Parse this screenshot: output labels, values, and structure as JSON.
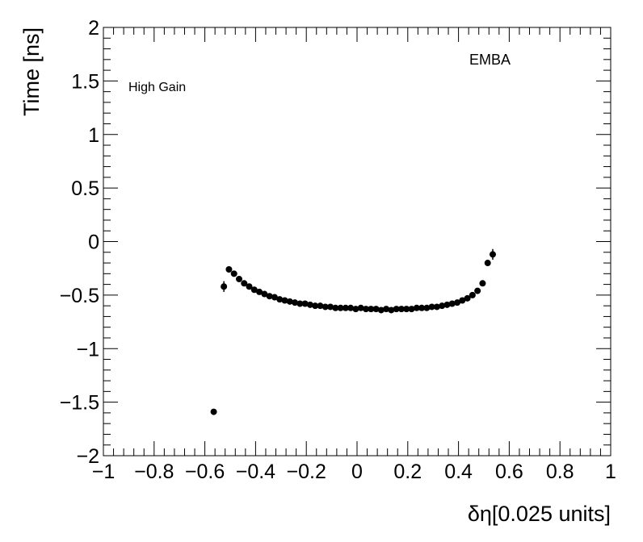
{
  "chart_data": {
    "type": "scatter",
    "xlabel": "δη[0.025 units]",
    "ylabel": "Time [ns]",
    "xlim": [
      -1,
      1
    ],
    "ylim": [
      -2,
      2
    ],
    "x_ticks": [
      "−1",
      "−0.8",
      "−0.6",
      "−0.4",
      "−0.2",
      "0",
      "0.2",
      "0.4",
      "0.6",
      "0.8",
      "1"
    ],
    "y_ticks": [
      "−2",
      "−1.5",
      "−1",
      "−0.5",
      "0",
      "0.5",
      "1",
      "1.5",
      "2"
    ],
    "annotations": [
      "EMBA",
      "High Gain"
    ],
    "grid": false,
    "marker_color": "#000000",
    "points": [
      {
        "x": -0.565,
        "y": -1.59,
        "err": 0.02
      },
      {
        "x": -0.525,
        "y": -0.42,
        "err": 0.05
      },
      {
        "x": -0.505,
        "y": -0.26,
        "err": 0.02
      },
      {
        "x": -0.485,
        "y": -0.3,
        "err": 0.015
      },
      {
        "x": -0.465,
        "y": -0.35,
        "err": 0.015
      },
      {
        "x": -0.445,
        "y": -0.39,
        "err": 0.012
      },
      {
        "x": -0.425,
        "y": -0.42,
        "err": 0.01
      },
      {
        "x": -0.405,
        "y": -0.45,
        "err": 0.01
      },
      {
        "x": -0.385,
        "y": -0.47,
        "err": 0.01
      },
      {
        "x": -0.365,
        "y": -0.49,
        "err": 0.01
      },
      {
        "x": -0.345,
        "y": -0.51,
        "err": 0.01
      },
      {
        "x": -0.325,
        "y": -0.52,
        "err": 0.01
      },
      {
        "x": -0.305,
        "y": -0.54,
        "err": 0.01
      },
      {
        "x": -0.285,
        "y": -0.55,
        "err": 0.01
      },
      {
        "x": -0.265,
        "y": -0.56,
        "err": 0.01
      },
      {
        "x": -0.245,
        "y": -0.57,
        "err": 0.01
      },
      {
        "x": -0.225,
        "y": -0.58,
        "err": 0.01
      },
      {
        "x": -0.205,
        "y": -0.58,
        "err": 0.01
      },
      {
        "x": -0.185,
        "y": -0.59,
        "err": 0.01
      },
      {
        "x": -0.165,
        "y": -0.6,
        "err": 0.01
      },
      {
        "x": -0.145,
        "y": -0.6,
        "err": 0.01
      },
      {
        "x": -0.125,
        "y": -0.61,
        "err": 0.01
      },
      {
        "x": -0.105,
        "y": -0.61,
        "err": 0.01
      },
      {
        "x": -0.085,
        "y": -0.62,
        "err": 0.01
      },
      {
        "x": -0.065,
        "y": -0.62,
        "err": 0.01
      },
      {
        "x": -0.045,
        "y": -0.62,
        "err": 0.01
      },
      {
        "x": -0.025,
        "y": -0.62,
        "err": 0.01
      },
      {
        "x": -0.005,
        "y": -0.63,
        "err": 0.01
      },
      {
        "x": 0.015,
        "y": -0.62,
        "err": 0.01
      },
      {
        "x": 0.035,
        "y": -0.63,
        "err": 0.01
      },
      {
        "x": 0.055,
        "y": -0.63,
        "err": 0.01
      },
      {
        "x": 0.075,
        "y": -0.63,
        "err": 0.01
      },
      {
        "x": 0.095,
        "y": -0.64,
        "err": 0.01
      },
      {
        "x": 0.115,
        "y": -0.63,
        "err": 0.01
      },
      {
        "x": 0.135,
        "y": -0.64,
        "err": 0.01
      },
      {
        "x": 0.155,
        "y": -0.63,
        "err": 0.01
      },
      {
        "x": 0.175,
        "y": -0.63,
        "err": 0.01
      },
      {
        "x": 0.195,
        "y": -0.63,
        "err": 0.01
      },
      {
        "x": 0.215,
        "y": -0.63,
        "err": 0.01
      },
      {
        "x": 0.235,
        "y": -0.62,
        "err": 0.01
      },
      {
        "x": 0.255,
        "y": -0.62,
        "err": 0.01
      },
      {
        "x": 0.275,
        "y": -0.62,
        "err": 0.01
      },
      {
        "x": 0.295,
        "y": -0.61,
        "err": 0.01
      },
      {
        "x": 0.315,
        "y": -0.61,
        "err": 0.01
      },
      {
        "x": 0.335,
        "y": -0.6,
        "err": 0.01
      },
      {
        "x": 0.355,
        "y": -0.59,
        "err": 0.01
      },
      {
        "x": 0.375,
        "y": -0.58,
        "err": 0.01
      },
      {
        "x": 0.395,
        "y": -0.57,
        "err": 0.01
      },
      {
        "x": 0.415,
        "y": -0.55,
        "err": 0.01
      },
      {
        "x": 0.435,
        "y": -0.53,
        "err": 0.01
      },
      {
        "x": 0.455,
        "y": -0.5,
        "err": 0.012
      },
      {
        "x": 0.475,
        "y": -0.46,
        "err": 0.015
      },
      {
        "x": 0.495,
        "y": -0.39,
        "err": 0.02
      },
      {
        "x": 0.515,
        "y": -0.2,
        "err": 0.03
      },
      {
        "x": 0.535,
        "y": -0.12,
        "err": 0.05
      }
    ]
  }
}
